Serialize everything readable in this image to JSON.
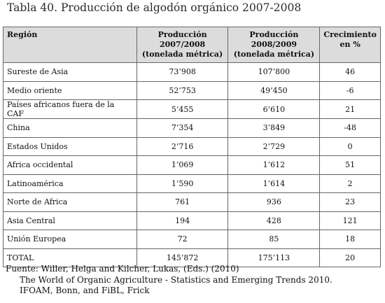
{
  "title": "Tabla 40. Producción de algodón orgánico 2007-2008",
  "table": {
    "headers": {
      "region": "Región",
      "prod_2007_line1": "Producción 2007/2008",
      "prod_2007_line2": "(tonelada métrica)",
      "prod_2008_line1": "Producción 2008/2009",
      "prod_2008_line2": "(tonelada métrica)",
      "growth_line1": "Crecimiento",
      "growth_line2": "en %"
    },
    "rows": [
      {
        "region": "Sureste de Asia",
        "prod_2007": "73’908",
        "prod_2008": "107’800",
        "growth": "46"
      },
      {
        "region": "Medio oriente",
        "prod_2007": "52’753",
        "prod_2008": "49’450",
        "growth": "-6"
      },
      {
        "region": "Países africanos fuera de la CAF",
        "prod_2007": "5’455",
        "prod_2008": "6’610",
        "growth": "21"
      },
      {
        "region": "China",
        "prod_2007": "7’354",
        "prod_2008": "3’849",
        "growth": "-48"
      },
      {
        "region": "Estados Unidos",
        "prod_2007": "2’716",
        "prod_2008": "2’729",
        "growth": "0"
      },
      {
        "region": "Africa occidental",
        "prod_2007": "1’069",
        "prod_2008": "1’612",
        "growth": "51"
      },
      {
        "region": "Latinoamérica",
        "prod_2007": "1’590",
        "prod_2008": "1’614",
        "growth": "2"
      },
      {
        "region": "Norte de Africa",
        "prod_2007": "761",
        "prod_2008": "936",
        "growth": "23"
      },
      {
        "region": "Asia Central",
        "prod_2007": "194",
        "prod_2008": "428",
        "growth": "121"
      },
      {
        "region": "Unión Europea",
        "prod_2007": "72",
        "prod_2008": "85",
        "growth": "18"
      },
      {
        "region": "TOTAL",
        "prod_2007": "145’872",
        "prod_2008": "175’113",
        "growth": "20"
      }
    ]
  },
  "source": {
    "line1": "Fuente: Willer, Helga and Kilcher, Lukas, (Eds.) (2010)",
    "line2": "The World of Organic Agriculture - Statistics and Emerging Trends 2010.",
    "line3": "IFOAM, Bonn, and FiBL, Frick"
  }
}
